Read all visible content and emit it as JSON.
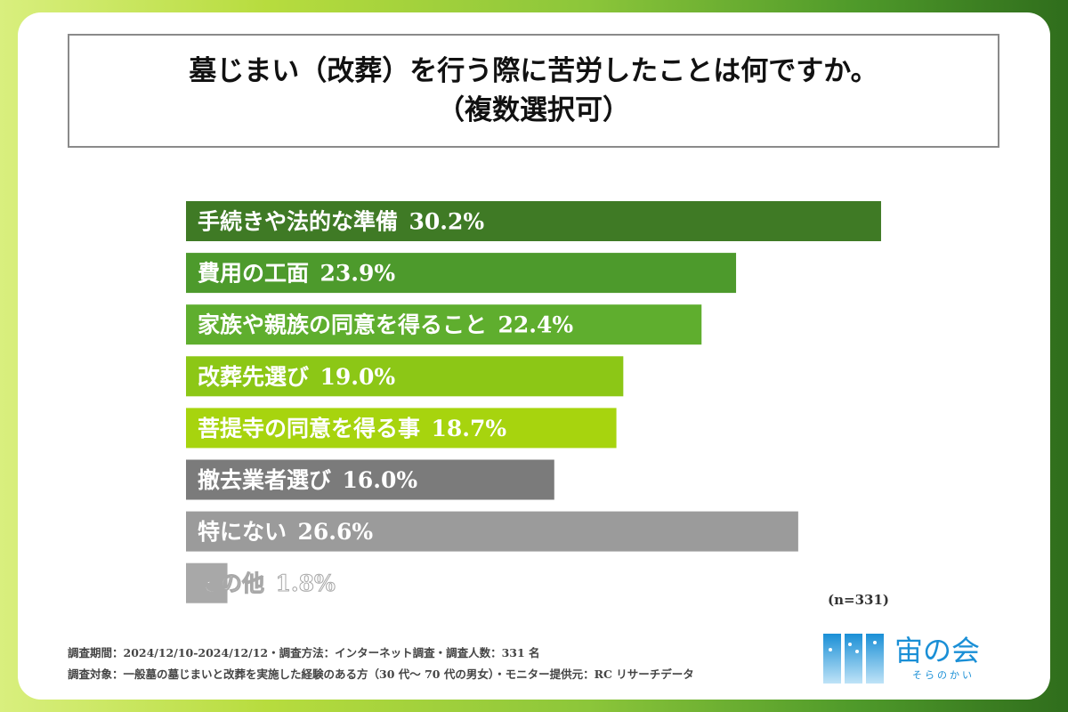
{
  "title": {
    "line1": "墓じまい（改葬）を行う際に苦労したことは何ですか。",
    "line2": "（複数選択可）"
  },
  "chart_data": {
    "type": "bar",
    "orientation": "horizontal",
    "unit": "%",
    "categories": [
      "手続きや法的な準備",
      "費用の工面",
      "家族や親族の同意を得ること",
      "改葬先選び",
      "菩提寺の同意を得る事",
      "撤去業者選び",
      "特にない",
      "その他"
    ],
    "values": [
      30.2,
      23.9,
      22.4,
      19.0,
      18.7,
      16.0,
      26.6,
      1.8
    ],
    "colors": [
      "#3f7a25",
      "#4d9a2c",
      "#5fae2e",
      "#8cc716",
      "#a7d40e",
      "#7b7b7b",
      "#9b9b9b",
      "#a8a8a8"
    ],
    "grid": false,
    "axes_visible": false,
    "sample_note": "(n=331)"
  },
  "footer": {
    "line1": "調査期間：2024/12/10-2024/12/12・調査方法：インターネット調査・調査人数：331 名",
    "line2": "調査対象：一般墓の墓じまいと改葬を実施した経験のある方（30 代～ 70 代の男女）・モニター提供元：RC リサーチデータ"
  },
  "logo": {
    "name": "宙の会",
    "kana": "そらのかい",
    "color": "#1a8fd6"
  }
}
